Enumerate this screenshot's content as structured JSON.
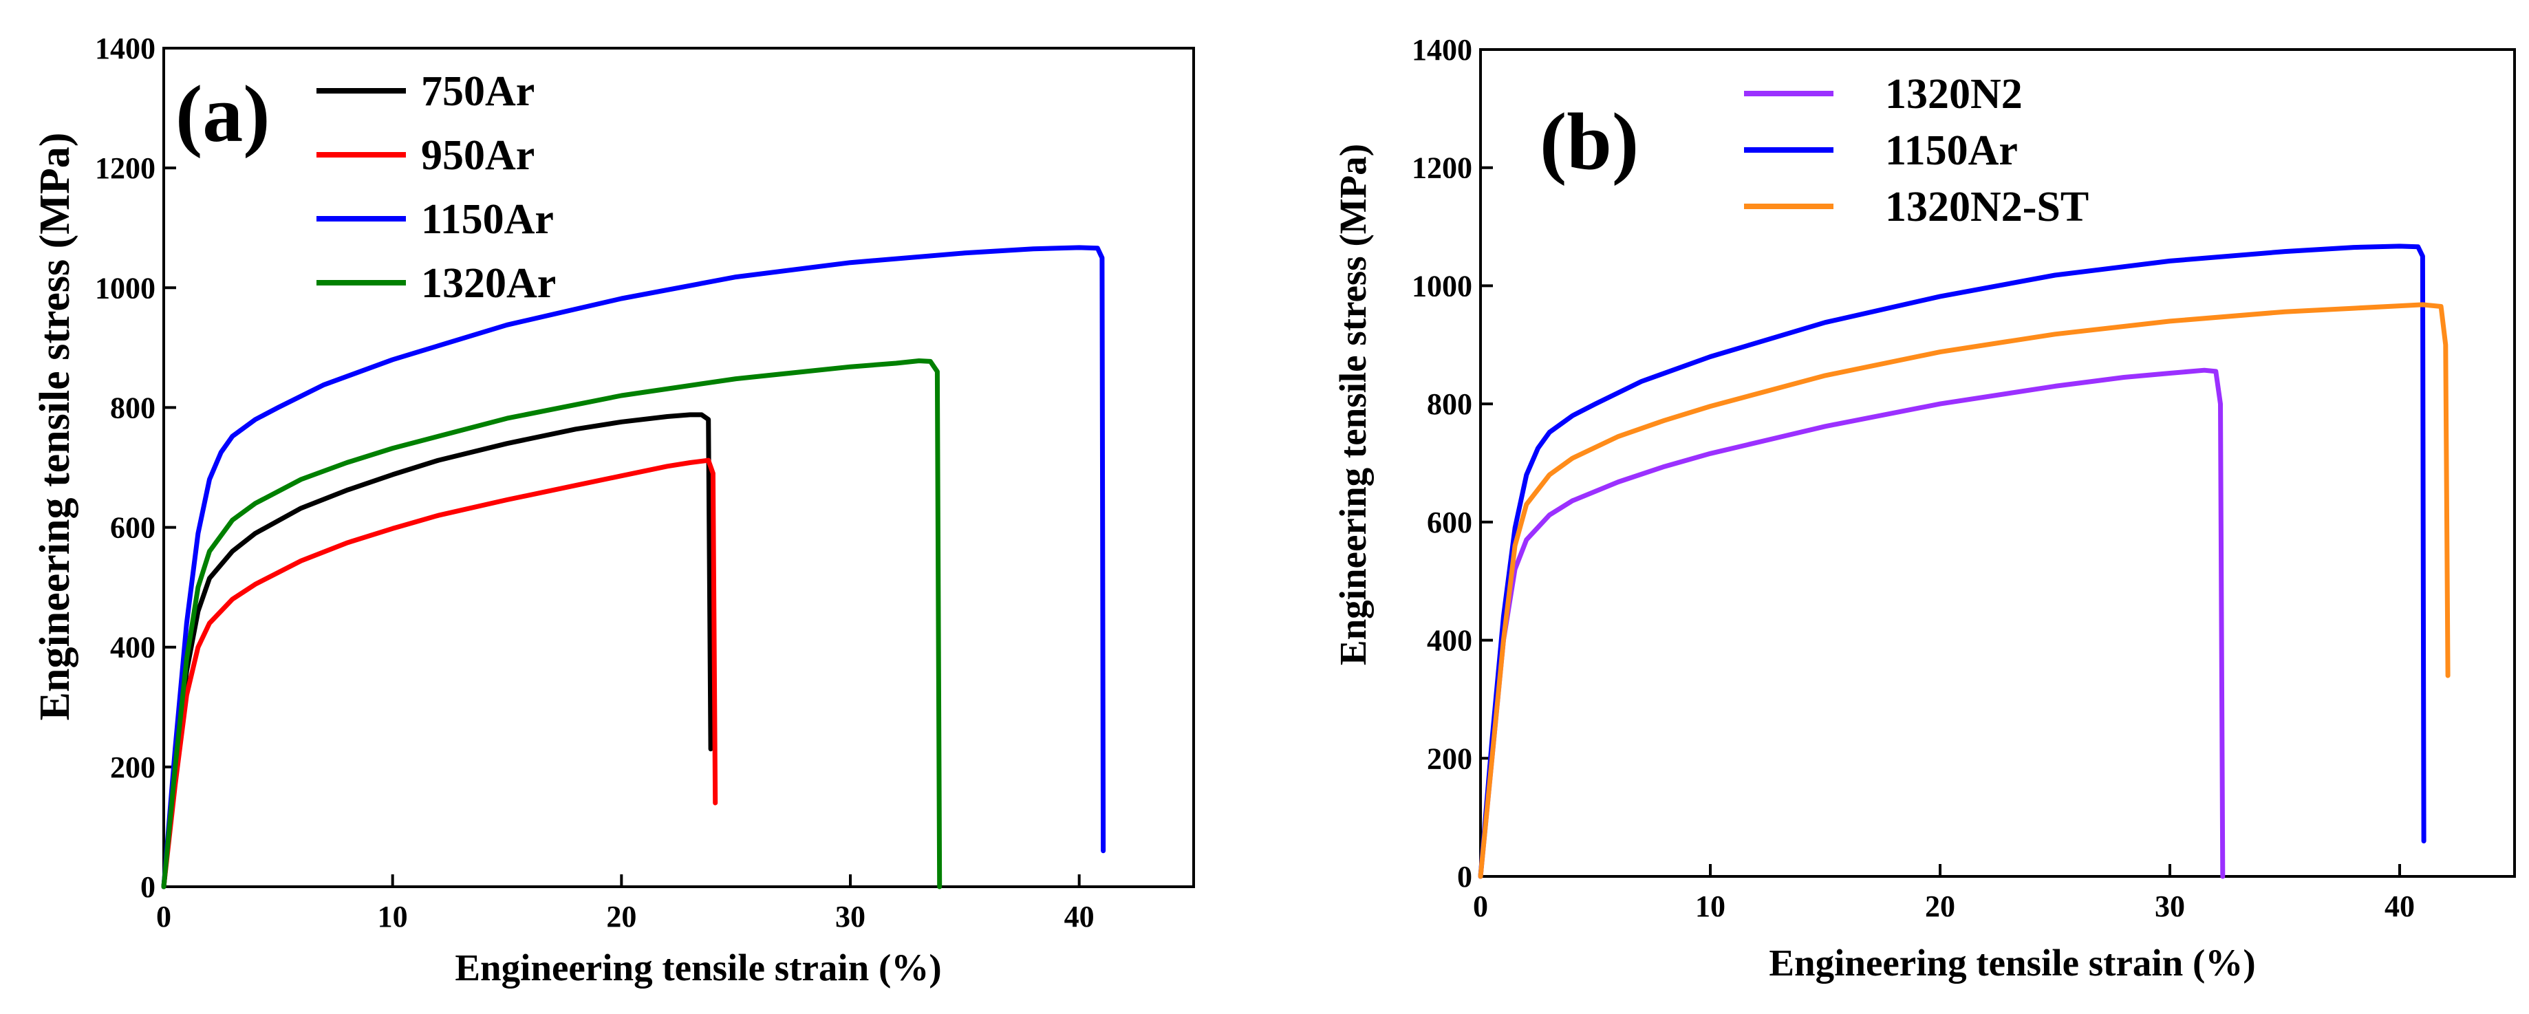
{
  "chart_data": [
    {
      "type": "line",
      "panel_label": "(a)",
      "xlabel": "Engineering tensile strain (%)",
      "ylabel": "Engineering tensile stress (MPa)",
      "xlim": [
        0,
        45
      ],
      "ylim": [
        0,
        1400
      ],
      "xticks": [
        0,
        10,
        20,
        30,
        40
      ],
      "yticks": [
        0,
        200,
        400,
        600,
        800,
        1000,
        1200,
        1400
      ],
      "legend_position": "top-left",
      "series": [
        {
          "name": "750Ar",
          "color": "#000000",
          "x": [
            0,
            0.5,
            1,
            1.5,
            2,
            3,
            4,
            6,
            8,
            10,
            12,
            15,
            18,
            20,
            22,
            23,
            23.5,
            23.8,
            23.9
          ],
          "y": [
            0,
            190,
            360,
            460,
            515,
            560,
            590,
            632,
            662,
            688,
            712,
            740,
            764,
            776,
            785,
            788,
            788,
            780,
            230
          ]
        },
        {
          "name": "950Ar",
          "color": "#ff0000",
          "x": [
            0,
            0.5,
            1,
            1.5,
            2,
            3,
            4,
            6,
            8,
            10,
            12,
            15,
            18,
            20,
            22,
            23,
            23.8,
            24,
            24.1
          ],
          "y": [
            0,
            170,
            320,
            400,
            440,
            480,
            505,
            544,
            574,
            598,
            620,
            646,
            670,
            686,
            702,
            708,
            712,
            690,
            140
          ]
        },
        {
          "name": "1150Ar",
          "color": "#0000ff",
          "x": [
            0,
            0.5,
            1,
            1.5,
            2,
            2.5,
            3,
            4,
            5,
            7,
            10,
            15,
            20,
            25,
            30,
            35,
            38,
            40,
            40.8,
            41,
            41.05
          ],
          "y": [
            0,
            230,
            440,
            590,
            680,
            725,
            752,
            780,
            800,
            838,
            880,
            938,
            982,
            1018,
            1042,
            1058,
            1065,
            1067,
            1066,
            1050,
            60
          ]
        },
        {
          "name": "1320Ar",
          "color": "#008000",
          "x": [
            0,
            0.5,
            1,
            1.5,
            2,
            3,
            4,
            6,
            8,
            10,
            15,
            20,
            25,
            30,
            32,
            33,
            33.5,
            33.8,
            33.9
          ],
          "y": [
            0,
            200,
            380,
            500,
            560,
            612,
            640,
            680,
            708,
            732,
            782,
            820,
            848,
            868,
            874,
            878,
            877,
            860,
            0
          ]
        }
      ]
    },
    {
      "type": "line",
      "panel_label": "(b)",
      "xlabel": "Engineering tensile strain (%)",
      "ylabel": "Engineering tensile stress (MPa)",
      "xlim": [
        0,
        45
      ],
      "ylim": [
        0,
        1400
      ],
      "xticks": [
        0,
        10,
        20,
        30,
        40
      ],
      "yticks": [
        0,
        200,
        400,
        600,
        800,
        1000,
        1200,
        1400
      ],
      "legend_position": "top-left",
      "series": [
        {
          "name": "1320N2",
          "color": "#9b30ff",
          "x": [
            0,
            0.5,
            1,
            1.5,
            2,
            3,
            4,
            6,
            8,
            10,
            15,
            20,
            25,
            28,
            30,
            31.5,
            32,
            32.2,
            32.3
          ],
          "y": [
            0,
            200,
            400,
            520,
            570,
            612,
            636,
            668,
            694,
            716,
            762,
            800,
            830,
            845,
            852,
            857,
            855,
            800,
            0
          ]
        },
        {
          "name": "1150Ar",
          "color": "#0000ff",
          "x": [
            0,
            0.5,
            1,
            1.5,
            2,
            2.5,
            3,
            4,
            5,
            7,
            10,
            15,
            20,
            25,
            30,
            35,
            38,
            40,
            40.8,
            41,
            41.05
          ],
          "y": [
            0,
            230,
            440,
            590,
            680,
            725,
            752,
            780,
            800,
            838,
            880,
            938,
            982,
            1018,
            1042,
            1058,
            1065,
            1067,
            1066,
            1050,
            60
          ]
        },
        {
          "name": "1320N2-ST",
          "color": "#ff8c1a",
          "x": [
            0,
            0.5,
            1,
            1.5,
            2,
            3,
            4,
            6,
            8,
            10,
            15,
            20,
            25,
            30,
            35,
            38,
            40,
            41,
            41.8,
            42,
            42.1
          ],
          "y": [
            0,
            200,
            400,
            560,
            630,
            680,
            708,
            745,
            772,
            796,
            848,
            888,
            918,
            940,
            956,
            962,
            966,
            968,
            965,
            900,
            340
          ]
        }
      ]
    }
  ]
}
